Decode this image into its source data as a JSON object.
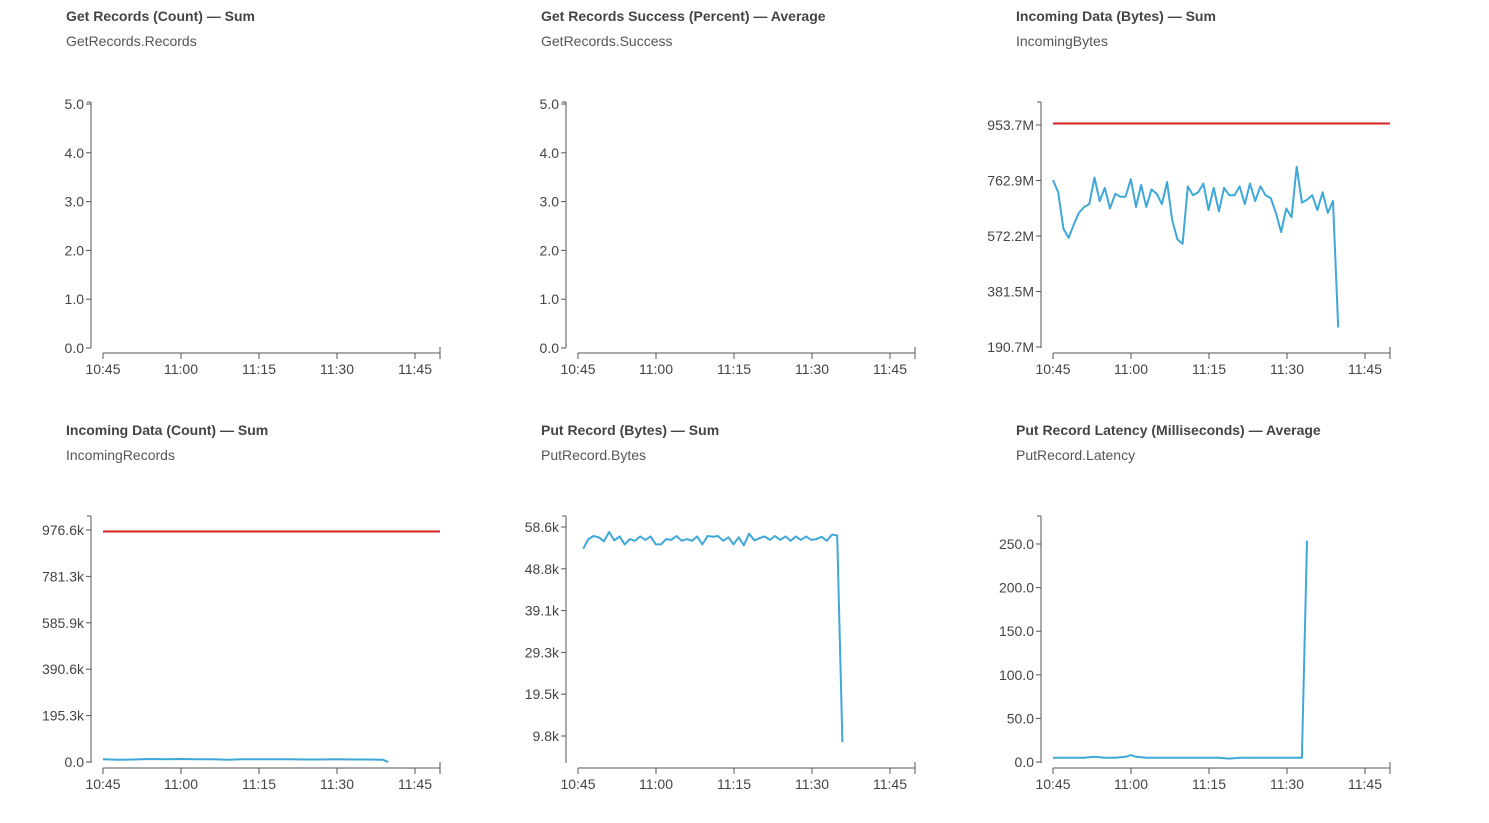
{
  "chart_data": [
    {
      "type": "line",
      "title": "Get Records (Count) — Sum",
      "subtitle": "GetRecords.Records",
      "y_ticks": [
        "5.0",
        "4.0",
        "3.0",
        "2.0",
        "1.0",
        "0.0"
      ],
      "x_ticks": [
        "10:45",
        "11:00",
        "11:15",
        "11:30",
        "11:45"
      ],
      "ylim": [
        0,
        5
      ],
      "xlim_minutes": [
        0,
        65
      ],
      "series": [],
      "threshold": null
    },
    {
      "type": "line",
      "title": "Get Records Success (Percent) — Average",
      "subtitle": "GetRecords.Success",
      "y_ticks": [
        "5.0",
        "4.0",
        "3.0",
        "2.0",
        "1.0",
        "0.0"
      ],
      "x_ticks": [
        "10:45",
        "11:00",
        "11:15",
        "11:30",
        "11:45"
      ],
      "ylim": [
        0,
        5
      ],
      "xlim_minutes": [
        0,
        65
      ],
      "series": [],
      "threshold": null
    },
    {
      "type": "line",
      "title": "Incoming Data (Bytes) — Sum",
      "subtitle": "IncomingBytes",
      "y_ticks": [
        "953.7M",
        "762.9M",
        "572.2M",
        "381.5M",
        "190.7M"
      ],
      "x_ticks": [
        "10:45",
        "11:00",
        "11:15",
        "11:30",
        "11:45"
      ],
      "ylim": [
        190.7,
        1027
      ],
      "xlim_minutes": [
        0,
        65
      ],
      "threshold": 953.7,
      "series": [
        {
          "color": "#3ea8d8",
          "values": [
            [
              0,
              762
            ],
            [
              1,
              720
            ],
            [
              2,
              597
            ],
            [
              3,
              565
            ],
            [
              4,
              610
            ],
            [
              5,
              650
            ],
            [
              6,
              670
            ],
            [
              7,
              680
            ],
            [
              8,
              770
            ],
            [
              9,
              690
            ],
            [
              10,
              735
            ],
            [
              11,
              665
            ],
            [
              12,
              715
            ],
            [
              13,
              705
            ],
            [
              14,
              705
            ],
            [
              15,
              765
            ],
            [
              16,
              670
            ],
            [
              17,
              745
            ],
            [
              18,
              670
            ],
            [
              19,
              730
            ],
            [
              20,
              715
            ],
            [
              21,
              680
            ],
            [
              22,
              755
            ],
            [
              23,
              625
            ],
            [
              24,
              560
            ],
            [
              25,
              545
            ],
            [
              26,
              740
            ],
            [
              27,
              710
            ],
            [
              28,
              720
            ],
            [
              29,
              750
            ],
            [
              30,
              660
            ],
            [
              31,
              735
            ],
            [
              32,
              655
            ],
            [
              33,
              735
            ],
            [
              34,
              710
            ],
            [
              35,
              710
            ],
            [
              36,
              740
            ],
            [
              37,
              680
            ],
            [
              38,
              750
            ],
            [
              39,
              690
            ],
            [
              40,
              740
            ],
            [
              41,
              710
            ],
            [
              42,
              700
            ],
            [
              43,
              650
            ],
            [
              44,
              585
            ],
            [
              45,
              665
            ],
            [
              46,
              635
            ],
            [
              47,
              807
            ],
            [
              48,
              685
            ],
            [
              49,
              695
            ],
            [
              50,
              710
            ],
            [
              51,
              660
            ],
            [
              52,
              720
            ],
            [
              53,
              650
            ],
            [
              54,
              690
            ],
            [
              55,
              260
            ]
          ]
        }
      ]
    },
    {
      "type": "line",
      "title": "Incoming Data (Count) — Sum",
      "subtitle": "IncomingRecords",
      "y_ticks": [
        "976.6k",
        "781.3k",
        "585.9k",
        "390.6k",
        "195.3k",
        "0.0"
      ],
      "x_ticks": [
        "10:45",
        "11:00",
        "11:15",
        "11:30",
        "11:45"
      ],
      "ylim": [
        0,
        1000
      ],
      "xlim_minutes": [
        0,
        65
      ],
      "threshold": 937,
      "series": [
        {
          "color": "#3ea8d8",
          "values": [
            [
              0,
              15
            ],
            [
              3,
              13
            ],
            [
              6,
              14
            ],
            [
              9,
              16
            ],
            [
              12,
              15
            ],
            [
              15,
              16
            ],
            [
              18,
              15
            ],
            [
              21,
              15
            ],
            [
              24,
              13
            ],
            [
              27,
              15
            ],
            [
              30,
              15
            ],
            [
              33,
              15
            ],
            [
              36,
              15
            ],
            [
              39,
              14
            ],
            [
              42,
              14
            ],
            [
              45,
              15
            ],
            [
              48,
              14
            ],
            [
              51,
              14
            ],
            [
              54,
              13
            ],
            [
              55,
              4
            ]
          ]
        }
      ]
    },
    {
      "type": "line",
      "title": "Put Record (Bytes) — Sum",
      "subtitle": "PutRecord.Bytes",
      "y_ticks": [
        "58.6k",
        "48.8k",
        "39.1k",
        "29.3k",
        "19.5k",
        "9.8k"
      ],
      "x_ticks": [
        "10:45",
        "11:00",
        "11:15",
        "11:30",
        "11:45"
      ],
      "ylim": [
        4.5,
        60.2
      ],
      "xlim_minutes": [
        0,
        65
      ],
      "threshold": null,
      "series": [
        {
          "color": "#3ea8d8",
          "values": [
            [
              1,
              52.8
            ],
            [
              2,
              55
            ],
            [
              3,
              55.7
            ],
            [
              4,
              55.4
            ],
            [
              5,
              54.5
            ],
            [
              6,
              56.6
            ],
            [
              7,
              54.7
            ],
            [
              8,
              55.6
            ],
            [
              9,
              53.8
            ],
            [
              10,
              55
            ],
            [
              11,
              54.6
            ],
            [
              12,
              55.6
            ],
            [
              13,
              54.8
            ],
            [
              14,
              55.6
            ],
            [
              15,
              53.8
            ],
            [
              16,
              53.8
            ],
            [
              17,
              55
            ],
            [
              18,
              54.8
            ],
            [
              19,
              55.7
            ],
            [
              20,
              54.6
            ],
            [
              21,
              55
            ],
            [
              22,
              54.6
            ],
            [
              23,
              55.6
            ],
            [
              24,
              53.8
            ],
            [
              25,
              55.7
            ],
            [
              26,
              55.5
            ],
            [
              27,
              55.7
            ],
            [
              28,
              54.6
            ],
            [
              29,
              55.4
            ],
            [
              30,
              53.8
            ],
            [
              31,
              55.4
            ],
            [
              32,
              53.6
            ],
            [
              33,
              56.2
            ],
            [
              34,
              54.7
            ],
            [
              35,
              55.2
            ],
            [
              36,
              55.6
            ],
            [
              37,
              54.8
            ],
            [
              38,
              55.7
            ],
            [
              39,
              54.8
            ],
            [
              40,
              55.6
            ],
            [
              41,
              54.6
            ],
            [
              42,
              55.6
            ],
            [
              43,
              54.8
            ],
            [
              44,
              55.6
            ],
            [
              45,
              54.8
            ],
            [
              46,
              55
            ],
            [
              47,
              55.5
            ],
            [
              48,
              54.6
            ],
            [
              49,
              56
            ],
            [
              50,
              55.8
            ],
            [
              51,
              9.2
            ]
          ]
        }
      ]
    },
    {
      "type": "line",
      "title": "Put Record Latency (Milliseconds) — Average",
      "subtitle": "PutRecord.Latency",
      "y_ticks": [
        "250.0",
        "200.0",
        "150.0",
        "100.0",
        "50.0",
        "0.0"
      ],
      "x_ticks": [
        "10:45",
        "11:00",
        "11:15",
        "11:30",
        "11:45"
      ],
      "ylim": [
        0,
        280
      ],
      "xlim_minutes": [
        0,
        65
      ],
      "threshold": null,
      "series": [
        {
          "color": "#3ea8d8",
          "values": [
            [
              0,
              6
            ],
            [
              2,
              6
            ],
            [
              4,
              6
            ],
            [
              6,
              6
            ],
            [
              8,
              7
            ],
            [
              10,
              6
            ],
            [
              12,
              6
            ],
            [
              14,
              7
            ],
            [
              15,
              9
            ],
            [
              16,
              7
            ],
            [
              18,
              6
            ],
            [
              20,
              6
            ],
            [
              22,
              6
            ],
            [
              24,
              6
            ],
            [
              26,
              6
            ],
            [
              28,
              6
            ],
            [
              30,
              6
            ],
            [
              32,
              6
            ],
            [
              34,
              5
            ],
            [
              36,
              6
            ],
            [
              38,
              6
            ],
            [
              40,
              6
            ],
            [
              42,
              6
            ],
            [
              44,
              6
            ],
            [
              46,
              6
            ],
            [
              48,
              6
            ],
            [
              49,
              252
            ]
          ]
        }
      ]
    }
  ]
}
